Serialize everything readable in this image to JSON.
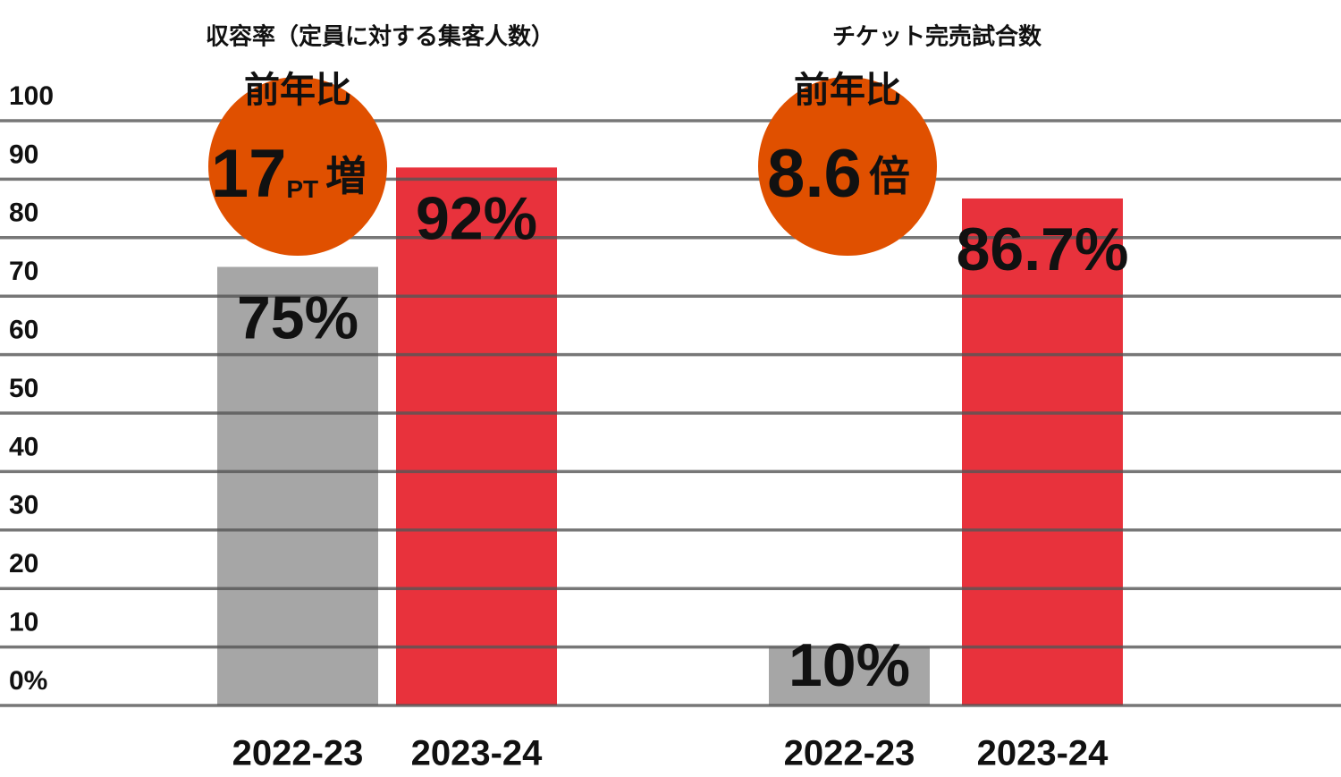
{
  "chart_data": [
    {
      "type": "bar",
      "title": "収容率（定員に対する集客人数）",
      "categories": [
        "2022-23",
        "2023-24"
      ],
      "values": [
        75,
        92
      ],
      "value_labels": [
        "75%",
        "92%"
      ],
      "colors": [
        "#a6a6a6",
        "#e8323c"
      ],
      "ylim": [
        0,
        100
      ],
      "yticks": [
        {
          "value": 0,
          "label": "0%"
        },
        10,
        20,
        30,
        40,
        50,
        60,
        70,
        80,
        90,
        100
      ],
      "grid": true,
      "badge": {
        "label": "前年比",
        "value": 17,
        "unit": "PT",
        "suffix": "増",
        "color": "#e05000"
      }
    },
    {
      "type": "bar",
      "title": "チケット完売試合数",
      "categories": [
        "2022-23",
        "2023-24"
      ],
      "values": [
        10,
        86.7
      ],
      "value_labels": [
        "10%",
        "86.7%"
      ],
      "colors": [
        "#a6a6a6",
        "#e8323c"
      ],
      "ylim": [
        0,
        100
      ],
      "badge": {
        "label": "前年比",
        "value": 8.6,
        "suffix": "倍",
        "color": "#e05000"
      }
    }
  ]
}
